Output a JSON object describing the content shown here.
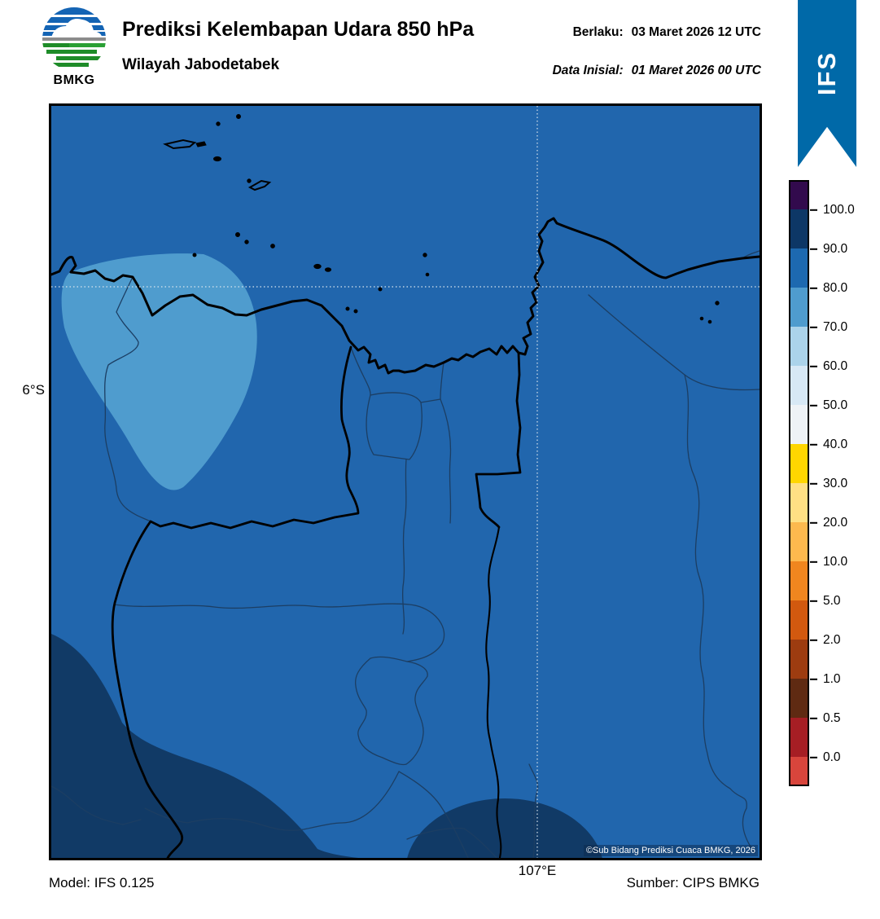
{
  "header": {
    "logo": {
      "text": "BMKG"
    },
    "title": "Prediksi Kelembapan Udara 850 hPa",
    "subtitle": "Wilayah Jabodetabek",
    "valid": {
      "label": "Berlaku:",
      "value": "03 Maret 2026 12 UTC"
    },
    "initial": {
      "label": "Data Inisial:",
      "value": "01 Maret 2026 00 UTC"
    },
    "ribbon": {
      "text": "IFS",
      "color": "#0069a8"
    }
  },
  "map": {
    "y_axis_label": "6°S",
    "x_axis_label": "107°E",
    "copyright": "©Sub Bidang Prediksi Cuaca BMKG, 2026",
    "colors": {
      "background_rh_80_90": "#2166ad",
      "rh_70_80": "#4f9cce",
      "rh_90_100": "#113a66",
      "coastline": "#000000",
      "admin_border": "#1c3e63",
      "gridline": "#dbe5ee"
    }
  },
  "colorbar": {
    "tick_labels": [
      "100.0",
      "90.0",
      "80.0",
      "70.0",
      "60.0",
      "50.0",
      "40.0",
      "30.0",
      "20.0",
      "10.0",
      "5.0",
      "2.0",
      "1.0",
      "0.5",
      "0.0"
    ],
    "segment_colors_top_to_bottom": [
      "#320a4d",
      "#0d3766",
      "#1d69b0",
      "#4f9cce",
      "#abd3ea",
      "#d7e8f5",
      "#eef2f6",
      "#ffd600",
      "#ffe084",
      "#fdb94e",
      "#f0861f",
      "#d2590f",
      "#9d3c10",
      "#5f2a12",
      "#a61e24",
      "#d8453c"
    ]
  },
  "footer": {
    "model": "Model: IFS 0.125",
    "source": "Sumber: CIPS BMKG"
  }
}
